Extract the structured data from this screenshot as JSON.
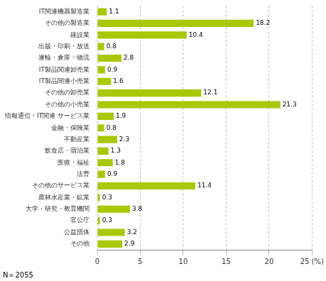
{
  "chart_data": {
    "type": "bar",
    "orientation": "horizontal",
    "categories": [
      "IT関連機器製造業",
      "その他の製造業",
      "建設業",
      "出版・印刷・放送",
      "運輸・倉庫・物流",
      "IT製品関連卸売業",
      "IT製品関連小売業",
      "その他の卸売業",
      "その他の小売業",
      "情報通信・IT関連 サービス業",
      "金融・保険業",
      "不動産業",
      "飲食店・宿泊業",
      "医療・福祉",
      "法曹",
      "その他のサービス業",
      "農林水産業・鉱業",
      "大学・研究・教育機関",
      "官公庁",
      "公益団体",
      "その他"
    ],
    "values": [
      1.1,
      18.2,
      10.4,
      0.8,
      2.8,
      0.9,
      1.6,
      12.1,
      21.3,
      1.9,
      0.8,
      2.3,
      1.3,
      1.8,
      0.9,
      11.4,
      0.3,
      3.8,
      0.3,
      3.2,
      2.9
    ],
    "color": "#a8c800",
    "xlim": [
      0,
      25
    ],
    "xticks": [
      0,
      5,
      10,
      15,
      20,
      {
        "value": 25,
        "label": "25 (%)"
      }
    ],
    "grid": true,
    "data_labels": true,
    "annotations": [
      "N＝2055"
    ]
  }
}
